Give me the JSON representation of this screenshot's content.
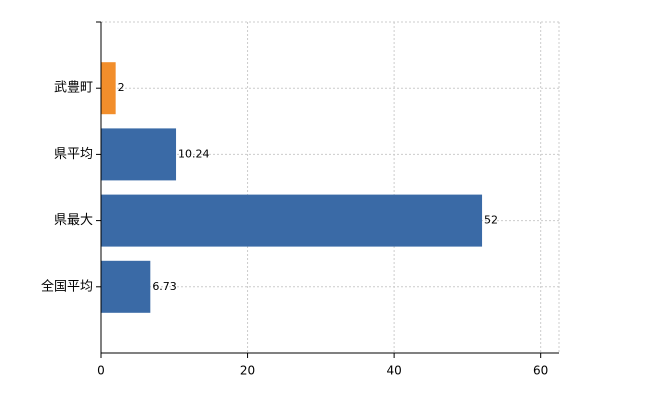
{
  "chart_data": {
    "type": "hbar",
    "categories": [
      "武豊町",
      "県平均",
      "県最大",
      "全国平均"
    ],
    "values": [
      2,
      10.24,
      52,
      6.73
    ],
    "colors": [
      "#f28e2b",
      "#3a6aa6",
      "#3a6aa6",
      "#3a6aa6"
    ],
    "xlim": [
      0,
      62.5
    ],
    "xticks": [
      0,
      20,
      40,
      60
    ],
    "grid": true
  }
}
